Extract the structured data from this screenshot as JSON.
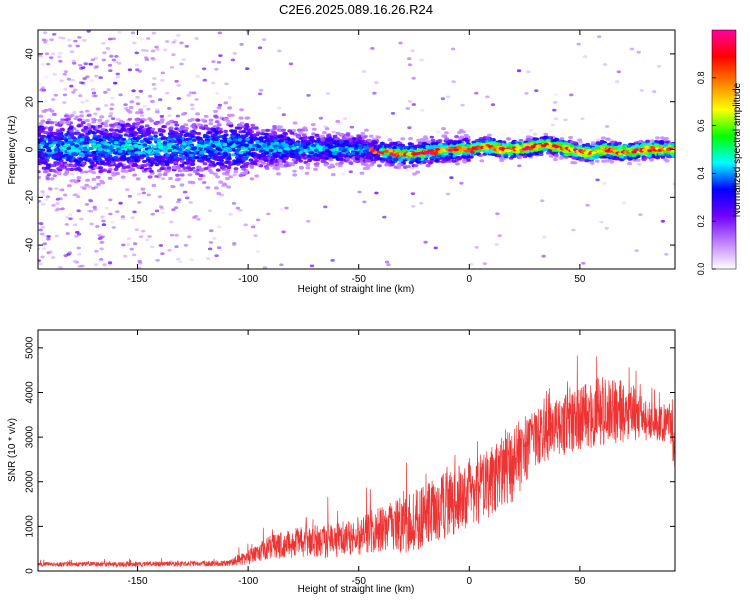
{
  "title": "C2E6.2025.089.16.26.R24",
  "chart_data": [
    {
      "type": "heatmap",
      "xlabel": "Height of straight line (km)",
      "ylabel": "Frequency (Hz)",
      "xlim": [
        -195,
        93
      ],
      "ylim": [
        -50,
        50
      ],
      "xticks": [
        -150,
        -100,
        -50,
        0,
        50
      ],
      "yticks": [
        -40,
        -20,
        0,
        20,
        40
      ],
      "grid": false,
      "colorbar": {
        "label": "Normalized spectral amplitude",
        "range": [
          0,
          1
        ],
        "ticks": [
          "0.0",
          "0.2",
          "0.4",
          "0.6",
          "0.8"
        ],
        "tick_values": [
          0,
          0.2,
          0.4,
          0.6,
          0.8
        ],
        "colors": [
          "#ffffff",
          "#c080ff",
          "#7000ff",
          "#0000ff",
          "#00ffff",
          "#00ff00",
          "#ffff00",
          "#ff8000",
          "#ff0000",
          "#ff00a0"
        ]
      },
      "ridge": {
        "x": [
          -195,
          -150,
          -100,
          -75,
          -50,
          -35,
          -25,
          -10,
          0,
          8,
          15,
          25,
          35,
          40,
          45,
          50,
          55,
          60,
          70,
          80,
          93
        ],
        "frequency": [
          1,
          1,
          1,
          0.5,
          0,
          -1.5,
          -2,
          0,
          0,
          1.5,
          0,
          0.5,
          2,
          1,
          0,
          -1,
          -1.5,
          0,
          -1,
          0,
          0
        ]
      }
    },
    {
      "type": "line",
      "xlabel": "Height of straight line (km)",
      "ylabel": "SNR (10 * v/v)",
      "xlim": [
        -195,
        93
      ],
      "ylim": [
        0,
        5400
      ],
      "xticks": [
        -150,
        -100,
        -50,
        0,
        50
      ],
      "yticks": [
        0,
        1000,
        2000,
        3000,
        4000,
        5000
      ],
      "grid": false,
      "series_color": "#ee3333",
      "envelope": {
        "x": [
          -195,
          -150,
          -110,
          -100,
          -90,
          -75,
          -60,
          -50,
          -40,
          -30,
          -20,
          -10,
          0,
          10,
          20,
          30,
          40,
          50,
          60,
          70,
          80,
          90,
          93
        ],
        "mean": [
          150,
          150,
          170,
          300,
          550,
          650,
          700,
          800,
          950,
          1000,
          1250,
          1500,
          1700,
          2000,
          2400,
          3000,
          3200,
          3400,
          3600,
          3600,
          3400,
          3300,
          2800
        ],
        "spread": [
          60,
          70,
          80,
          200,
          350,
          450,
          500,
          550,
          650,
          800,
          900,
          950,
          950,
          1000,
          1100,
          800,
          800,
          900,
          1000,
          900,
          600,
          500,
          700
        ]
      }
    }
  ]
}
